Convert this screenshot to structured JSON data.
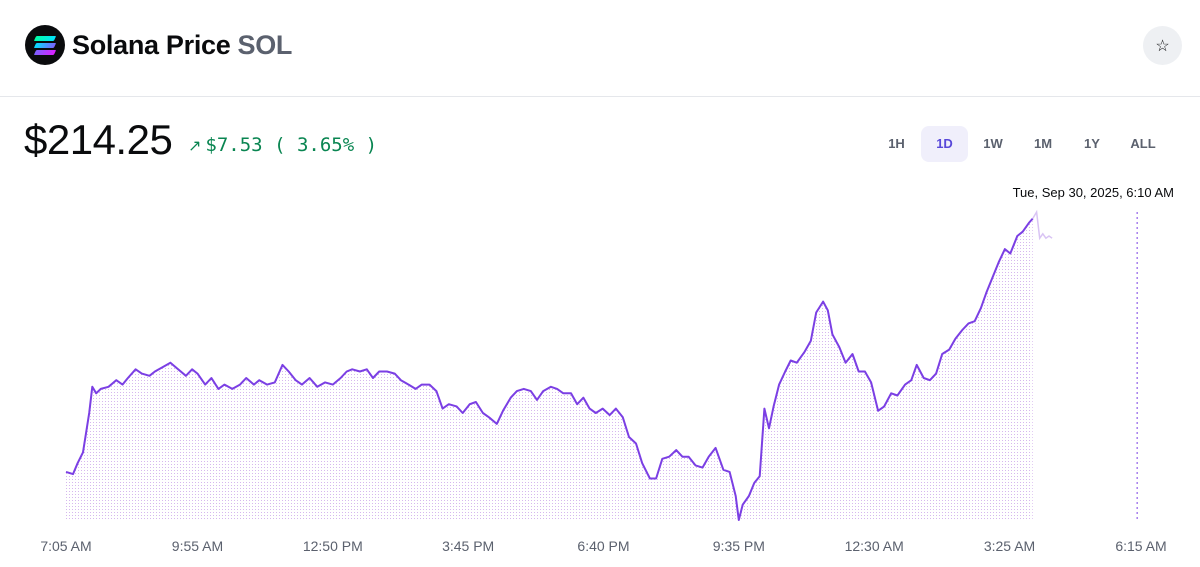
{
  "header": {
    "name": "Solana Price",
    "symbol": "SOL",
    "logo_icon": "solana-logo-icon",
    "star_icon": "star-outline-icon"
  },
  "price": {
    "value": "$214.25",
    "change_abs": "$7.53",
    "change_pct": "( 3.65% )",
    "change_icon": "arrow-up-right-icon",
    "change_color": "#098551"
  },
  "tabs": [
    {
      "label": "1H",
      "active": false
    },
    {
      "label": "1D",
      "active": true
    },
    {
      "label": "1W",
      "active": false
    },
    {
      "label": "1M",
      "active": false
    },
    {
      "label": "1Y",
      "active": false
    },
    {
      "label": "ALL",
      "active": false
    }
  ],
  "hover_timestamp": "Tue, Sep 30, 2025, 6:10 AM",
  "colors": {
    "accent": "#7b3fe4",
    "tab_active_bg": "#f0effb",
    "tab_active_text": "#5848d9",
    "positive": "#098551"
  },
  "chart_data": {
    "type": "line",
    "series_color": "#7b3fe4",
    "x_tick_labels": [
      "7:05 AM",
      "9:55 AM",
      "12:50 PM",
      "3:45 PM",
      "6:40 PM",
      "9:35 PM",
      "12:30 AM",
      "3:25 AM",
      "6:15 AM"
    ],
    "x_tick_times_min": [
      -1255,
      -1085,
      -910,
      -735,
      -560,
      -385,
      -210,
      -35,
      135
    ],
    "hover_time_min": 130,
    "grid": false,
    "fill": "dotted area under line",
    "ylim": [
      200.4,
      214.5
    ],
    "points": [
      [
        -1255,
        202.6
      ],
      [
        -1246,
        202.5
      ],
      [
        -1240,
        203.0
      ],
      [
        -1233,
        203.5
      ],
      [
        -1225,
        205.3
      ],
      [
        -1221,
        206.5
      ],
      [
        -1216,
        206.2
      ],
      [
        -1210,
        206.4
      ],
      [
        -1200,
        206.5
      ],
      [
        -1190,
        206.8
      ],
      [
        -1182,
        206.6
      ],
      [
        -1175,
        206.9
      ],
      [
        -1165,
        207.3
      ],
      [
        -1157,
        207.1
      ],
      [
        -1147,
        207.0
      ],
      [
        -1140,
        207.2
      ],
      [
        -1130,
        207.4
      ],
      [
        -1120,
        207.6
      ],
      [
        -1110,
        207.3
      ],
      [
        -1100,
        207.0
      ],
      [
        -1092,
        207.3
      ],
      [
        -1085,
        207.1
      ],
      [
        -1075,
        206.6
      ],
      [
        -1067,
        206.9
      ],
      [
        -1058,
        206.4
      ],
      [
        -1050,
        206.6
      ],
      [
        -1040,
        206.4
      ],
      [
        -1030,
        206.6
      ],
      [
        -1022,
        206.9
      ],
      [
        -1012,
        206.6
      ],
      [
        -1005,
        206.8
      ],
      [
        -995,
        206.6
      ],
      [
        -985,
        206.7
      ],
      [
        -975,
        207.5
      ],
      [
        -967,
        207.2
      ],
      [
        -958,
        206.8
      ],
      [
        -950,
        206.6
      ],
      [
        -940,
        206.9
      ],
      [
        -930,
        206.5
      ],
      [
        -920,
        206.7
      ],
      [
        -910,
        206.6
      ],
      [
        -900,
        206.9
      ],
      [
        -892,
        207.2
      ],
      [
        -885,
        207.3
      ],
      [
        -875,
        207.2
      ],
      [
        -866,
        207.3
      ],
      [
        -858,
        206.9
      ],
      [
        -850,
        207.2
      ],
      [
        -840,
        207.2
      ],
      [
        -830,
        207.1
      ],
      [
        -822,
        206.8
      ],
      [
        -812,
        206.6
      ],
      [
        -803,
        206.4
      ],
      [
        -795,
        206.6
      ],
      [
        -785,
        206.6
      ],
      [
        -776,
        206.3
      ],
      [
        -768,
        205.5
      ],
      [
        -760,
        205.7
      ],
      [
        -750,
        205.6
      ],
      [
        -742,
        205.3
      ],
      [
        -733,
        205.7
      ],
      [
        -725,
        205.8
      ],
      [
        -716,
        205.3
      ],
      [
        -708,
        205.1
      ],
      [
        -698,
        204.8
      ],
      [
        -690,
        205.4
      ],
      [
        -680,
        206.0
      ],
      [
        -672,
        206.3
      ],
      [
        -663,
        206.4
      ],
      [
        -654,
        206.3
      ],
      [
        -646,
        205.9
      ],
      [
        -638,
        206.3
      ],
      [
        -628,
        206.5
      ],
      [
        -620,
        206.4
      ],
      [
        -612,
        206.2
      ],
      [
        -602,
        206.2
      ],
      [
        -594,
        205.7
      ],
      [
        -586,
        206.0
      ],
      [
        -578,
        205.5
      ],
      [
        -570,
        205.3
      ],
      [
        -561,
        205.5
      ],
      [
        -552,
        205.2
      ],
      [
        -544,
        205.5
      ],
      [
        -535,
        205.1
      ],
      [
        -527,
        204.2
      ],
      [
        -518,
        203.9
      ],
      [
        -510,
        203.0
      ],
      [
        -500,
        202.3
      ],
      [
        -492,
        202.3
      ],
      [
        -484,
        203.2
      ],
      [
        -475,
        203.3
      ],
      [
        -466,
        203.6
      ],
      [
        -458,
        203.3
      ],
      [
        -450,
        203.3
      ],
      [
        -441,
        202.9
      ],
      [
        -432,
        202.8
      ],
      [
        -424,
        203.3
      ],
      [
        -415,
        203.7
      ],
      [
        -405,
        202.7
      ],
      [
        -397,
        202.6
      ],
      [
        -389,
        201.5
      ],
      [
        -385,
        200.4
      ],
      [
        -380,
        201.1
      ],
      [
        -372,
        201.5
      ],
      [
        -365,
        202.1
      ],
      [
        -358,
        202.4
      ],
      [
        -352,
        205.5
      ],
      [
        -346,
        204.6
      ],
      [
        -340,
        205.6
      ],
      [
        -333,
        206.6
      ],
      [
        -325,
        207.2
      ],
      [
        -318,
        207.7
      ],
      [
        -310,
        207.6
      ],
      [
        -300,
        208.1
      ],
      [
        -292,
        208.6
      ],
      [
        -285,
        209.9
      ],
      [
        -276,
        210.4
      ],
      [
        -270,
        210.0
      ],
      [
        -264,
        208.9
      ],
      [
        -255,
        208.3
      ],
      [
        -247,
        207.6
      ],
      [
        -238,
        208.0
      ],
      [
        -230,
        207.2
      ],
      [
        -222,
        207.2
      ],
      [
        -214,
        206.7
      ],
      [
        -205,
        205.4
      ],
      [
        -197,
        205.6
      ],
      [
        -188,
        206.2
      ],
      [
        -180,
        206.1
      ],
      [
        -170,
        206.6
      ],
      [
        -162,
        206.8
      ],
      [
        -155,
        207.5
      ],
      [
        -146,
        206.9
      ],
      [
        -138,
        206.8
      ],
      [
        -130,
        207.1
      ],
      [
        -122,
        208.0
      ],
      [
        -113,
        208.2
      ],
      [
        -105,
        208.7
      ],
      [
        -96,
        209.1
      ],
      [
        -88,
        209.4
      ],
      [
        -80,
        209.5
      ],
      [
        -72,
        210.1
      ],
      [
        -65,
        210.8
      ],
      [
        -57,
        211.5
      ],
      [
        -49,
        212.2
      ],
      [
        -41,
        212.8
      ],
      [
        -34,
        212.6
      ],
      [
        -25,
        213.4
      ],
      [
        -18,
        213.6
      ],
      [
        -10,
        214.0
      ],
      [
        -5,
        214.2
      ]
    ],
    "future_points": [
      [
        -5,
        214.2
      ],
      [
        0,
        214.5
      ],
      [
        4,
        213.3
      ],
      [
        8,
        213.5
      ],
      [
        12,
        213.3
      ],
      [
        16,
        213.4
      ],
      [
        20,
        213.3
      ]
    ]
  }
}
